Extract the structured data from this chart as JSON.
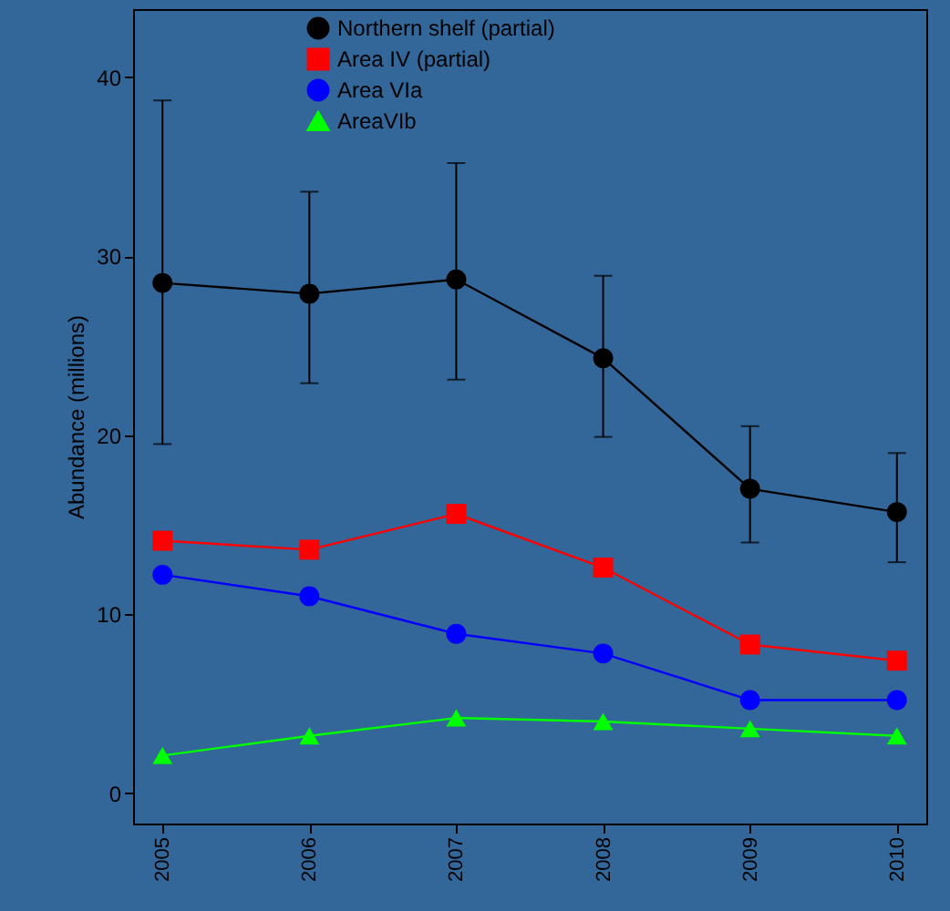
{
  "chart_data": {
    "type": "line",
    "ylabel": "Abundance (millions)",
    "categories": [
      "2005",
      "2006",
      "2007",
      "2008",
      "2009",
      "2010"
    ],
    "ylim": [
      -1.7,
      43.8
    ],
    "yticks": [
      0,
      10,
      20,
      30,
      40
    ],
    "legend": "top",
    "grid": false,
    "series": [
      {
        "name": "Northern shelf (partial)",
        "color": "#000000",
        "marker": "circle",
        "values": [
          28.5,
          27.9,
          28.7,
          24.3,
          17.0,
          15.7
        ],
        "errors": [
          [
            19.5,
            38.7
          ],
          [
            22.9,
            33.6
          ],
          [
            23.1,
            35.2
          ],
          [
            19.9,
            28.9
          ],
          [
            14.0,
            20.5
          ],
          [
            12.9,
            19.0
          ]
        ]
      },
      {
        "name": "Area IV (partial)",
        "color": "#ff0000",
        "marker": "square",
        "values": [
          14.1,
          13.6,
          15.6,
          12.6,
          8.3,
          7.4
        ]
      },
      {
        "name": "Area VIa",
        "color": "#0000ff",
        "marker": "circle",
        "values": [
          12.2,
          11.0,
          8.9,
          7.8,
          5.2,
          5.2
        ]
      },
      {
        "name": "AreaVIb",
        "color": "#00ff00",
        "marker": "triangle",
        "values": [
          2.1,
          3.2,
          4.2,
          4.0,
          3.6,
          3.2
        ]
      }
    ]
  }
}
